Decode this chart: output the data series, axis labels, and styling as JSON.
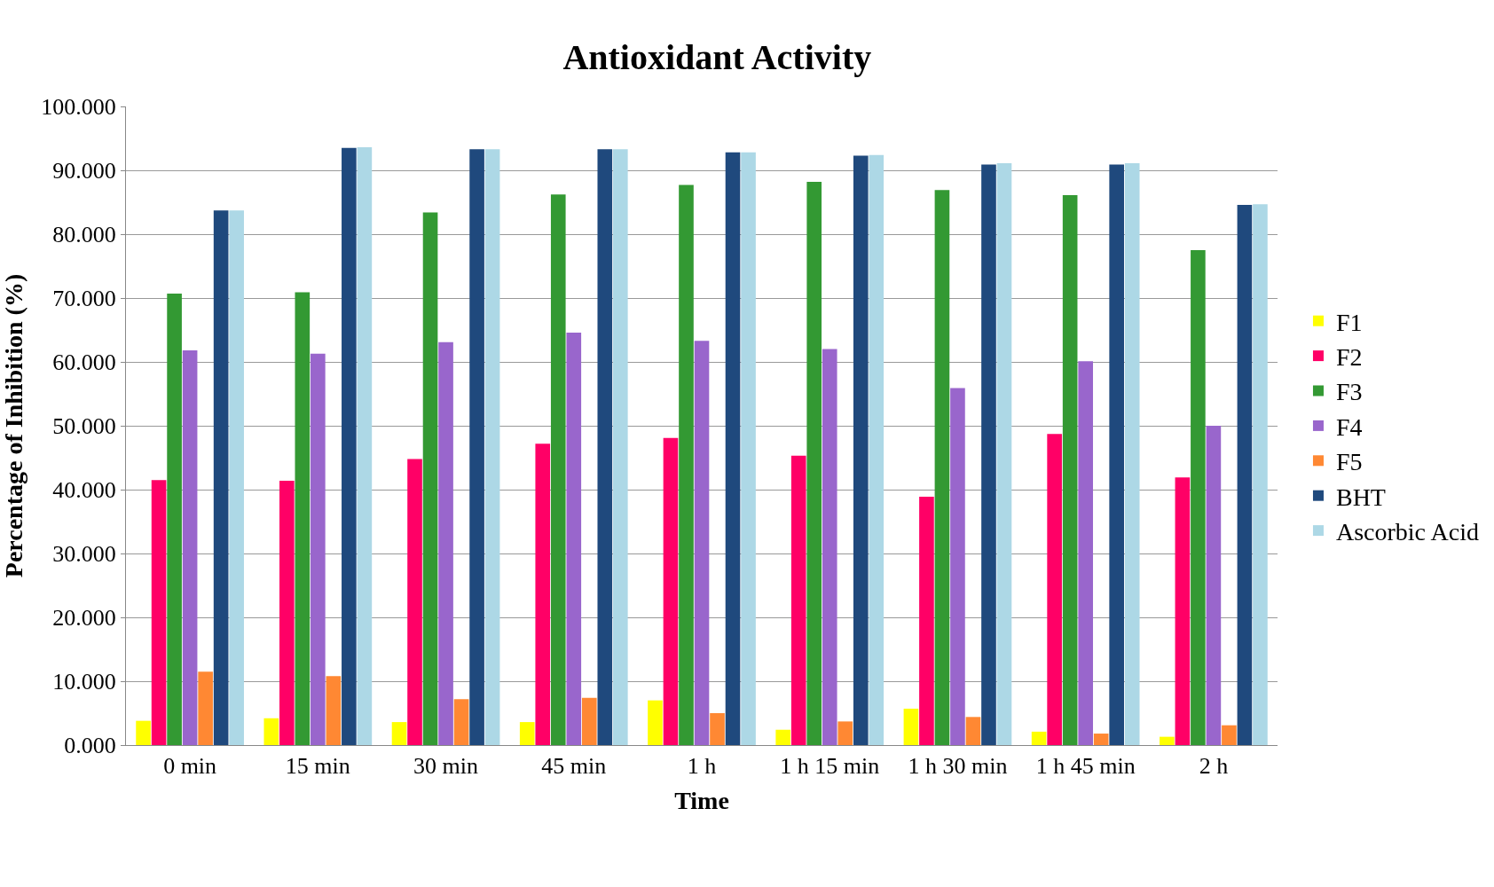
{
  "chart_data": {
    "type": "bar",
    "title": "Antioxidant Activity",
    "xlabel": "Time",
    "ylabel": "Percentage of Inhibition (%)",
    "categories": [
      "0 min",
      "15 min",
      "30 min",
      "45 min",
      "1 h",
      "1 h 15 min",
      "1 h 30 min",
      "1 h 45 min",
      "2 h"
    ],
    "series": [
      {
        "name": "F1",
        "color": "#ffff00",
        "values": [
          3.8,
          4.2,
          3.6,
          3.6,
          7.0,
          2.4,
          5.7,
          2.1,
          1.3
        ]
      },
      {
        "name": "F2",
        "color": "#ff0066",
        "values": [
          41.5,
          41.4,
          44.8,
          47.2,
          48.1,
          45.3,
          38.9,
          48.7,
          41.9
        ]
      },
      {
        "name": "F3",
        "color": "#339933",
        "values": [
          70.7,
          70.9,
          83.4,
          86.2,
          87.7,
          88.2,
          86.9,
          86.1,
          77.5
        ]
      },
      {
        "name": "F4",
        "color": "#9966cc",
        "values": [
          61.8,
          61.3,
          63.1,
          64.6,
          63.3,
          62.0,
          55.9,
          60.1,
          50.0
        ]
      },
      {
        "name": "F5",
        "color": "#ff8833",
        "values": [
          11.5,
          10.8,
          7.2,
          7.4,
          5.0,
          3.7,
          4.4,
          1.8,
          3.1
        ]
      },
      {
        "name": "BHT",
        "color": "#1f497d",
        "values": [
          83.7,
          93.5,
          93.3,
          93.3,
          92.8,
          92.3,
          90.9,
          90.9,
          84.6
        ]
      },
      {
        "name": "Ascorbic Acid",
        "color": "#add8e6",
        "values": [
          83.7,
          93.6,
          93.3,
          93.3,
          92.8,
          92.4,
          91.1,
          91.1,
          84.7
        ]
      }
    ],
    "ylim": [
      0,
      100
    ],
    "yticks": [
      {
        "value": 0,
        "label": "0.000"
      },
      {
        "value": 10,
        "label": "10.000"
      },
      {
        "value": 20,
        "label": "20.000"
      },
      {
        "value": 30,
        "label": "30.000"
      },
      {
        "value": 40,
        "label": "40.000"
      },
      {
        "value": 50,
        "label": "50.000"
      },
      {
        "value": 60,
        "label": "60.000"
      },
      {
        "value": 70,
        "label": "70.000"
      },
      {
        "value": 80,
        "label": "80.000"
      },
      {
        "value": 90,
        "label": "90.000"
      },
      {
        "value": 100,
        "label": "100.000"
      }
    ],
    "grid": "y",
    "legend": "right"
  }
}
